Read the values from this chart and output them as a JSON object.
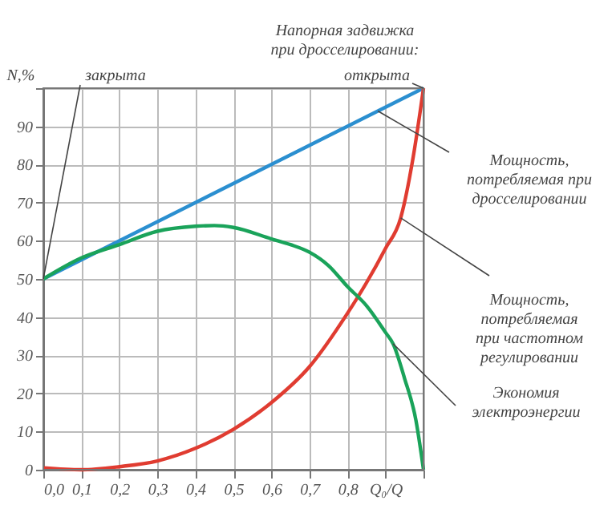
{
  "chart_data": {
    "type": "line",
    "title": "Напорная задвижка\nпри дросселировании:",
    "ylabel": "N,%",
    "xlim": [
      0,
      1
    ],
    "ylim": [
      0,
      100
    ],
    "xticks": [
      {
        "value": 0,
        "label": "0,0"
      },
      {
        "value": 0.1,
        "label": "0,1"
      },
      {
        "value": 0.2,
        "label": "0,2"
      },
      {
        "value": 0.3,
        "label": "0,3"
      },
      {
        "value": 0.4,
        "label": "0,4"
      },
      {
        "value": 0.5,
        "label": "0,5"
      },
      {
        "value": 0.6,
        "label": "0,6"
      },
      {
        "value": 0.7,
        "label": "0,7"
      },
      {
        "value": 0.8,
        "label": "0,8"
      },
      {
        "value": 0.9,
        "label": "Q₀/Q"
      },
      {
        "value": 1,
        "label": null
      }
    ],
    "yticks": [
      0,
      10,
      20,
      30,
      40,
      50,
      60,
      70,
      80,
      90,
      {
        "value": 100,
        "label": null
      }
    ],
    "grid": true,
    "legend": false,
    "series": [
      {
        "name": "Мощность,\nпотребляемая при\nдросселировании",
        "color": "#2b8fd0",
        "x": [
          0,
          0.88,
          1
        ],
        "values": [
          50,
          94,
          100
        ]
      },
      {
        "name": "Мощность,\nпотребляемая\nпри частотном\nрегулировании",
        "color": "#e03c31",
        "x": [
          0,
          0.1,
          0.2,
          0.3,
          0.4,
          0.5,
          0.6,
          0.7,
          0.8,
          0.85,
          0.9,
          0.94,
          0.973,
          1
        ],
        "values": [
          0.5,
          0,
          0.8,
          2.3,
          5.6,
          10.6,
          17.6,
          27,
          41,
          49,
          58,
          66,
          82,
          100
        ]
      },
      {
        "name": "Экономия\nэлектроэнергии",
        "color": "#1aa35a",
        "x": [
          0,
          0.1,
          0.2,
          0.3,
          0.4,
          0.45,
          0.5,
          0.6,
          0.65,
          0.7,
          0.75,
          0.8,
          0.85,
          0.9,
          0.92,
          0.95,
          0.98,
          1
        ],
        "values": [
          50,
          55.5,
          59,
          62.5,
          63.8,
          64,
          63.5,
          60.5,
          59,
          57,
          53.5,
          48,
          43,
          36,
          33,
          24,
          13,
          0
        ]
      }
    ],
    "annotations": [
      {
        "text": "закрыта",
        "x": 0,
        "y": 50
      },
      {
        "text": "открыта",
        "x": 1,
        "y": 100
      }
    ]
  }
}
